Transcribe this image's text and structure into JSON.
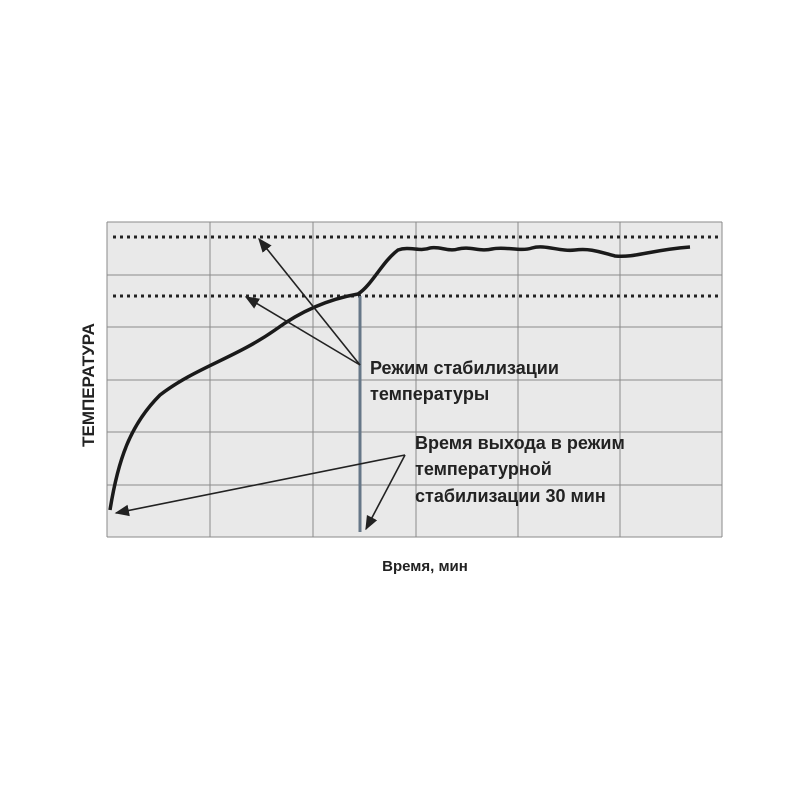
{
  "axes": {
    "x_label": "Время, мин",
    "y_label": "ТЕМПЕРАТУРА"
  },
  "annotations": [
    {
      "lines": [
        "Режим  стабилизации",
        "температуры"
      ]
    },
    {
      "lines": [
        "Время выхода в режим",
        "температурной",
        "стабилизации 30 мин"
      ]
    }
  ]
}
